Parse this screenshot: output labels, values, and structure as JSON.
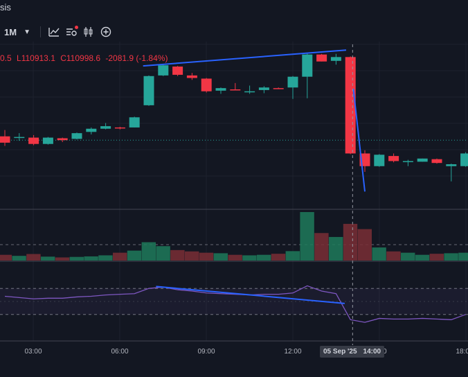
{
  "header": {
    "title": "sis",
    "interval": "1M",
    "caret": "▼",
    "icons": [
      "indicators-icon",
      "templates-icon",
      "chart-type-icon",
      "add-icon"
    ]
  },
  "ohlc": {
    "open_partial": "0.5",
    "low": "L110913.1",
    "close": "C110998.6",
    "change": "-2081.9 (-1.84%)",
    "color": "#f23645"
  },
  "crosshair": {
    "date": "05 Sep '25",
    "time": "14:00"
  },
  "colors": {
    "background": "#131722",
    "up": "#26a69a",
    "down": "#f23645",
    "trendline": "#2962ff",
    "rsi": "#7e57c2",
    "grid": "#1e222d"
  },
  "chart_data": {
    "type": "candlestick",
    "xaxis": {
      "ticks": [
        "03:00",
        "06:00",
        "09:00",
        "12:00",
        "15:00",
        "18:00"
      ],
      "visible_tick_labels": [
        "03:00",
        "06:00",
        "09:00",
        "12:00",
        "00",
        "18:00"
      ]
    },
    "price": {
      "ylim": [
        110700,
        113300
      ],
      "candles": [
        {
          "o": 111850,
          "h": 111950,
          "l": 111700,
          "c": 111750
        },
        {
          "o": 111830,
          "h": 111900,
          "l": 111780,
          "c": 111840
        },
        {
          "o": 111830,
          "h": 111870,
          "l": 111710,
          "c": 111730
        },
        {
          "o": 111730,
          "h": 111840,
          "l": 111720,
          "c": 111830
        },
        {
          "o": 111820,
          "h": 111830,
          "l": 111760,
          "c": 111790
        },
        {
          "o": 111810,
          "h": 111910,
          "l": 111800,
          "c": 111900
        },
        {
          "o": 111920,
          "h": 111990,
          "l": 111880,
          "c": 111970
        },
        {
          "o": 111970,
          "h": 112060,
          "l": 111960,
          "c": 112010
        },
        {
          "o": 111990,
          "h": 112000,
          "l": 111960,
          "c": 111980
        },
        {
          "o": 111990,
          "h": 112160,
          "l": 111990,
          "c": 112150
        },
        {
          "o": 112340,
          "h": 112810,
          "l": 112330,
          "c": 112800
        },
        {
          "o": 112810,
          "h": 112990,
          "l": 112800,
          "c": 112970
        },
        {
          "o": 112950,
          "h": 112960,
          "l": 112800,
          "c": 112820
        },
        {
          "o": 112810,
          "h": 112850,
          "l": 112740,
          "c": 112770
        },
        {
          "o": 112760,
          "h": 112770,
          "l": 112540,
          "c": 112560
        },
        {
          "o": 112570,
          "h": 112620,
          "l": 112520,
          "c": 112610
        },
        {
          "o": 112590,
          "h": 112690,
          "l": 112580,
          "c": 112580
        },
        {
          "o": 112560,
          "h": 112650,
          "l": 112520,
          "c": 112560
        },
        {
          "o": 112580,
          "h": 112640,
          "l": 112530,
          "c": 112620
        },
        {
          "o": 112610,
          "h": 112620,
          "l": 112600,
          "c": 112600
        },
        {
          "o": 112620,
          "h": 112800,
          "l": 112440,
          "c": 112790
        },
        {
          "o": 112790,
          "h": 113170,
          "l": 112450,
          "c": 113140
        },
        {
          "o": 113140,
          "h": 113150,
          "l": 113030,
          "c": 113030
        },
        {
          "o": 113040,
          "h": 113150,
          "l": 112980,
          "c": 113100
        },
        {
          "o": 113100,
          "h": 113110,
          "l": 111570,
          "c": 111580
        },
        {
          "o": 111580,
          "h": 111630,
          "l": 111290,
          "c": 111380
        },
        {
          "o": 111380,
          "h": 111570,
          "l": 111370,
          "c": 111560
        },
        {
          "o": 111540,
          "h": 111580,
          "l": 111440,
          "c": 111460
        },
        {
          "o": 111460,
          "h": 111480,
          "l": 111380,
          "c": 111460
        },
        {
          "o": 111450,
          "h": 111500,
          "l": 111450,
          "c": 111500
        },
        {
          "o": 111490,
          "h": 111500,
          "l": 111420,
          "c": 111430
        },
        {
          "o": 111380,
          "h": 111420,
          "l": 111140,
          "c": 111410
        },
        {
          "o": 111380,
          "h": 111600,
          "l": 111370,
          "c": 111580
        }
      ]
    },
    "volume": {
      "values": [
        22,
        18,
        25,
        15,
        12,
        14,
        16,
        20,
        30,
        38,
        70,
        55,
        40,
        35,
        30,
        28,
        22,
        20,
        22,
        26,
        36,
        185,
        105,
        90,
        140,
        120,
        50,
        35,
        30,
        22,
        26,
        28,
        30
      ]
    },
    "rsi": {
      "ylim": [
        0,
        100
      ],
      "levels": [
        70,
        30
      ],
      "values": [
        58,
        56,
        54,
        55,
        55,
        57,
        58,
        60,
        61,
        62,
        70,
        72,
        68,
        66,
        63,
        62,
        61,
        60,
        61,
        61,
        63,
        74,
        66,
        62,
        22,
        18,
        24,
        23,
        23,
        24,
        23,
        22,
        30
      ]
    },
    "trendlines": [
      {
        "pane": "price",
        "from": {
          "i": 9.6,
          "price": 112960
        },
        "to": {
          "i": 23.7,
          "price": 113210
        }
      },
      {
        "pane": "price",
        "from": {
          "i": 24.2,
          "price": 112600
        },
        "to": {
          "i": 25.0,
          "price": 110980
        }
      },
      {
        "pane": "rsi",
        "from": {
          "i": 10.5,
          "rsi": 73
        },
        "to": {
          "i": 23.6,
          "rsi": 47
        }
      }
    ],
    "dotted_price_level": 111790
  }
}
